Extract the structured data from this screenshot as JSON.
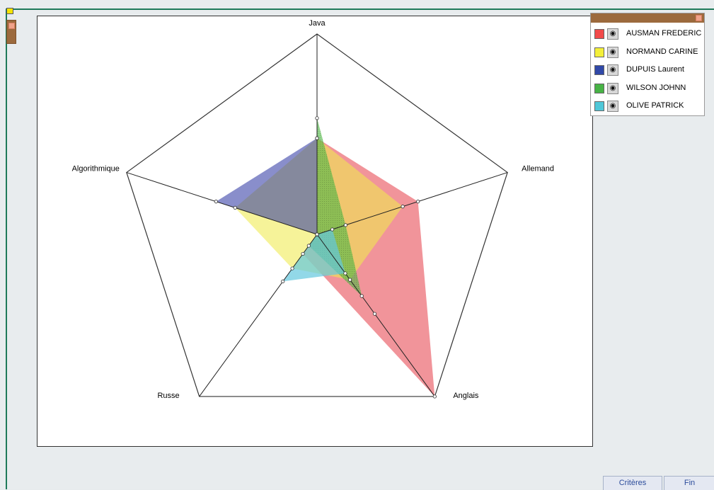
{
  "chart_data": {
    "type": "radar",
    "axes": [
      "Java",
      "Allemand",
      "Anglais",
      "Russe",
      "Algorithmique"
    ],
    "rmax": 10,
    "series": [
      {
        "name": "AUSMAN FREDERIC",
        "color": "#f24a4a",
        "fill": "rgba(232,82,92,0.62)",
        "values": [
          4.8,
          5.3,
          10,
          1.2,
          0
        ]
      },
      {
        "name": "NORMAND CARINE",
        "color": "#f3ef3a",
        "fill": "rgba(240,234,80,0.58)",
        "values": [
          4.8,
          4.5,
          2.8,
          2.1,
          4.3
        ]
      },
      {
        "name": "DUPUIS Laurent",
        "color": "#3048a8",
        "fill": "rgba(40,50,160,0.55)",
        "values": [
          4.8,
          0,
          4.9,
          0,
          5.3
        ]
      },
      {
        "name": "WILSON JOHNN",
        "color": "#47b345",
        "fill": "rgba(80,185,70,0.62)",
        "values": [
          5.8,
          1.5,
          3.8,
          0.7,
          0
        ]
      },
      {
        "name": "OLIVE PATRICK",
        "color": "#4fc7d8",
        "fill": "rgba(100,200,222,0.7)",
        "values": [
          0,
          0.8,
          2.4,
          2.9,
          0
        ]
      }
    ]
  },
  "legend_icon": "eye-icon",
  "buttons": {
    "criteres": "Critères",
    "fin": "Fin"
  }
}
